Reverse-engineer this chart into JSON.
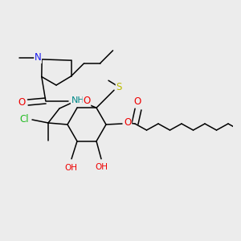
{
  "background_color": "#ececec",
  "figsize": [
    3.0,
    3.0
  ],
  "dpi": 100,
  "bond_lw": 1.1,
  "atom_N_color": "#1a1aee",
  "atom_O_color": "#ee0000",
  "atom_Cl_color": "#22bb22",
  "atom_S_color": "#bbbb00",
  "atom_NH_color": "#008888",
  "atom_C_color": "#111111",
  "xlim": [
    0.0,
    2.8
  ],
  "ylim": [
    0.0,
    3.0
  ],
  "font_size_atom": 8.5,
  "font_size_small": 7.5
}
